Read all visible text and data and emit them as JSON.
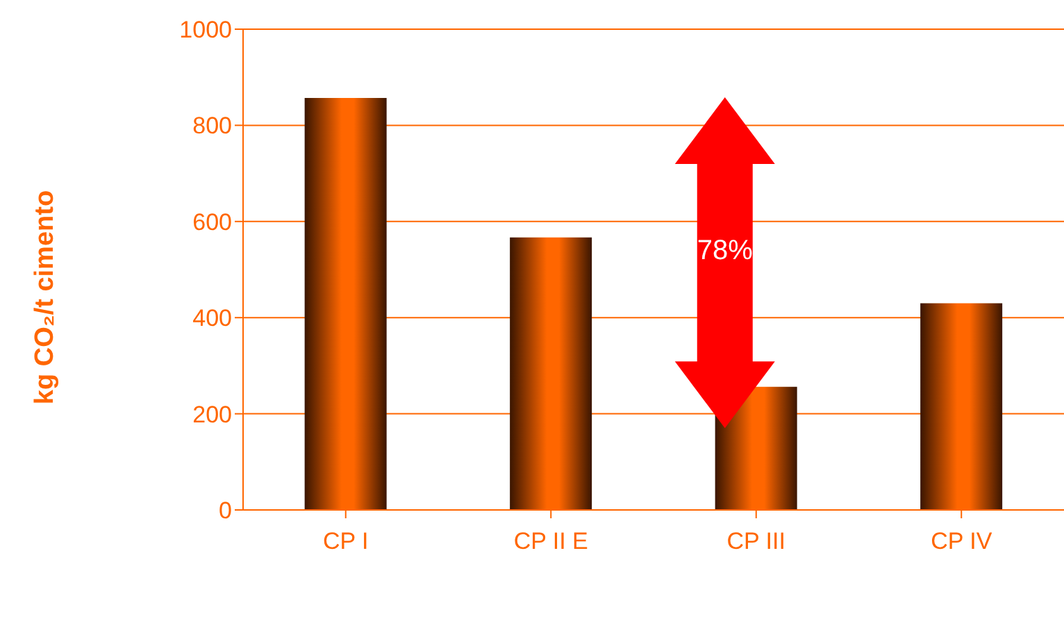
{
  "chart_data": {
    "type": "bar",
    "ylabel": "kg CO₂/t cimento",
    "categories": [
      "CP I",
      "CP II E",
      "CP III",
      "CP IV"
    ],
    "values": [
      857,
      567,
      256,
      430
    ],
    "color": "#ff6600",
    "ylim": [
      0,
      1000
    ],
    "yticks": [
      0,
      200,
      400,
      600,
      800,
      1000
    ],
    "grid": "y",
    "annotations": [
      "78%"
    ]
  }
}
